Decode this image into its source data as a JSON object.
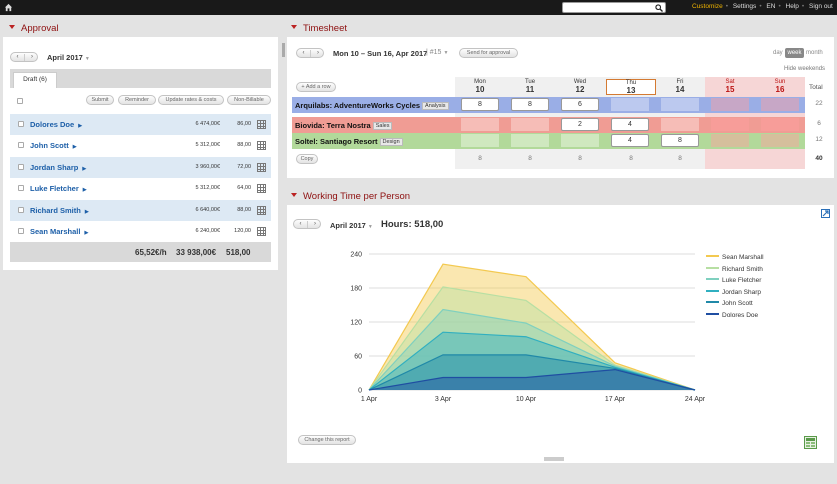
{
  "topbar": {
    "search_placeholder": "",
    "menu": [
      "Customize",
      "Settings",
      "EN",
      "Help",
      "Sign out"
    ],
    "accent": "#f0b400"
  },
  "approval": {
    "title": "Approval",
    "period": "April 2017",
    "tab": "Draft (6)",
    "actions": [
      "Submit",
      "Reminder",
      "Update rates & costs",
      "Non-Billable"
    ],
    "rows": [
      {
        "name": "Dolores Doe",
        "amount": "6 474,00€",
        "hours": "86,00"
      },
      {
        "name": "John Scott",
        "amount": "5 312,00€",
        "hours": "88,00"
      },
      {
        "name": "Jordan Sharp",
        "amount": "3 960,00€",
        "hours": "72,00"
      },
      {
        "name": "Luke Fletcher",
        "amount": "5 312,00€",
        "hours": "64,00"
      },
      {
        "name": "Richard Smith",
        "amount": "6 640,00€",
        "hours": "88,00"
      },
      {
        "name": "Sean Marshall",
        "amount": "6 240,00€",
        "hours": "120,00"
      }
    ],
    "footer": {
      "rate": "65,52€/h",
      "amount": "33 938,00€",
      "hours": "518,00"
    }
  },
  "timesheet": {
    "title": "Timesheet",
    "range": "Mon 10 – Sun 16, Apr 2017",
    "week": "#15",
    "send_label": "Send for approval",
    "views": [
      "day",
      "week",
      "month"
    ],
    "active_view": "week",
    "hide_weekends": "Hide weekends",
    "add_row": "+ Add a row",
    "copy": "Copy",
    "total_label": "Total",
    "days": [
      {
        "name": "Mon",
        "num": "10"
      },
      {
        "name": "Tue",
        "num": "11"
      },
      {
        "name": "Wed",
        "num": "12"
      },
      {
        "name": "Thu",
        "num": "13"
      },
      {
        "name": "Fri",
        "num": "14"
      },
      {
        "name": "Sat",
        "num": "15"
      },
      {
        "name": "Sun",
        "num": "16"
      }
    ],
    "rows": [
      {
        "project": "Arquilabs: AdventureWorks Cycles",
        "tag": "Analysis",
        "values": [
          "8",
          "8",
          "6",
          "",
          "",
          "",
          ""
        ],
        "total": "22",
        "color": "#9aaee6",
        "cell": "#bcc9ef"
      },
      {
        "project": "Biovida: Terra Nostra",
        "tag": "Sales",
        "values": [
          "",
          "",
          "2",
          "4",
          "",
          "",
          ""
        ],
        "total": "6",
        "color": "#f09c94",
        "cell": "#f6bdb7"
      },
      {
        "project": "Soltel: Santiago Resort",
        "tag": "Design",
        "values": [
          "",
          "",
          "",
          "4",
          "8",
          "",
          ""
        ],
        "total": "12",
        "color": "#b2d99a",
        "cell": "#cfe8bf"
      }
    ],
    "day_totals": [
      "8",
      "8",
      "8",
      "8",
      "8",
      "",
      ""
    ],
    "grand_total": "40"
  },
  "working_time": {
    "title": "Working Time per Person",
    "period": "April 2017",
    "hours_label": "Hours: 518,00",
    "change_report": "Change this report"
  },
  "chart_data": {
    "type": "area",
    "x": [
      "1 Apr",
      "3 Apr",
      "10 Apr",
      "17 Apr",
      "24 Apr"
    ],
    "ylim": [
      0,
      240
    ],
    "yticks": [
      0,
      60,
      120,
      180,
      240
    ],
    "stacked": true,
    "grid": true,
    "legend": "right",
    "series": [
      {
        "name": "Sean Marshall",
        "color": "#f3c950",
        "cumulative": [
          0,
          222,
          200,
          48,
          0
        ]
      },
      {
        "name": "Richard Smith",
        "color": "#b7dfa3",
        "cumulative": [
          0,
          182,
          158,
          44,
          0
        ]
      },
      {
        "name": "Luke Fletcher",
        "color": "#7fd0bf",
        "cumulative": [
          0,
          142,
          118,
          42,
          0
        ]
      },
      {
        "name": "Jordan Sharp",
        "color": "#30afc0",
        "cumulative": [
          0,
          102,
          94,
          40,
          0
        ]
      },
      {
        "name": "John Scott",
        "color": "#2089a8",
        "cumulative": [
          0,
          62,
          62,
          38,
          0
        ]
      },
      {
        "name": "Dolores Doe",
        "color": "#1f4ea2",
        "cumulative": [
          0,
          22,
          22,
          36,
          0
        ]
      }
    ]
  }
}
